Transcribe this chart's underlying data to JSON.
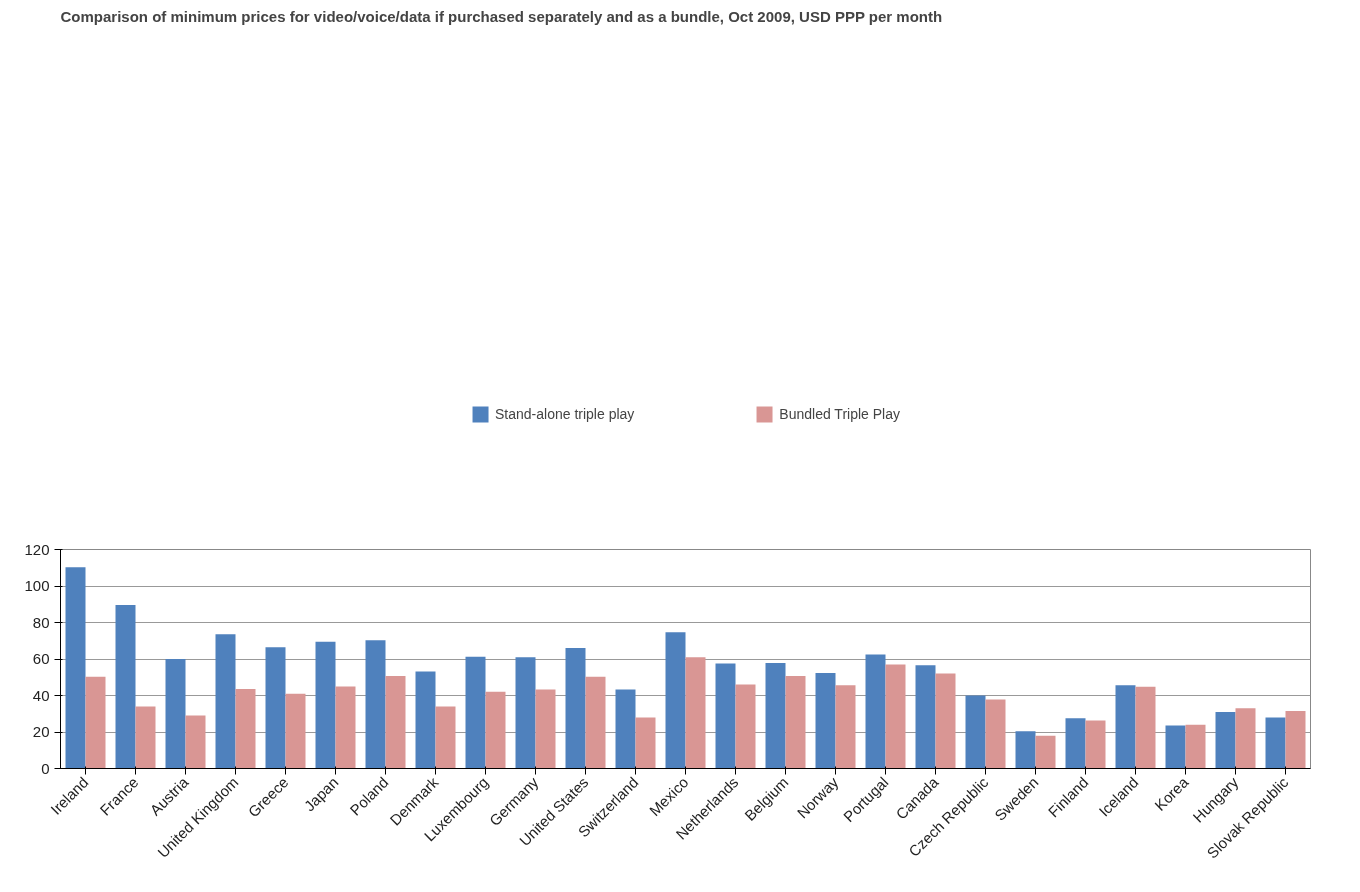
{
  "chart_data": {
    "type": "bar",
    "title": "Comparison of minimum prices for video/voice/data if purchased separately and as a bundle, Oct 2009,  USD PPP per month",
    "categories": [
      "Ireland",
      "France",
      "Austria",
      "United Kingdom",
      "Greece",
      "Japan",
      "Poland",
      "Denmark",
      "Luxembourg",
      "Germany",
      "United States",
      "Switzerland",
      "Mexico",
      "Netherlands",
      "Belgium",
      "Norway",
      "Portugal",
      "Canada",
      "Czech Republic",
      "Sweden",
      "Finland",
      "Iceland",
      "Korea",
      "Hungary",
      "Slovak Republic"
    ],
    "series": [
      {
        "name": "Stand-alone triple play",
        "color": "#4f81bd",
        "values": [
          110.3,
          89.6,
          60,
          73.5,
          66.5,
          69.5,
          70.3,
          53.2,
          61.3,
          61,
          66,
          43.3,
          74.7,
          57.5,
          57.8,
          52.3,
          62.5,
          56.6,
          40,
          20.4,
          27.5,
          45.6,
          23.5,
          31,
          28
        ]
      },
      {
        "name": "Bundled Triple Play",
        "color": "#d99694",
        "values": [
          50.3,
          34,
          29,
          43.5,
          41,
          45,
          50.7,
          34,
          42,
          43.3,
          50.3,
          28,
          61,
          46,
          50.7,
          45.6,
          57,
          52,
          37.8,
          18,
          26.3,
          44.8,
          24,
          33,
          31.5
        ]
      }
    ],
    "ylim": [
      0,
      120
    ],
    "yticks": [
      0,
      20,
      40,
      60,
      80,
      100,
      120
    ],
    "grid": "y",
    "legend": "top"
  }
}
